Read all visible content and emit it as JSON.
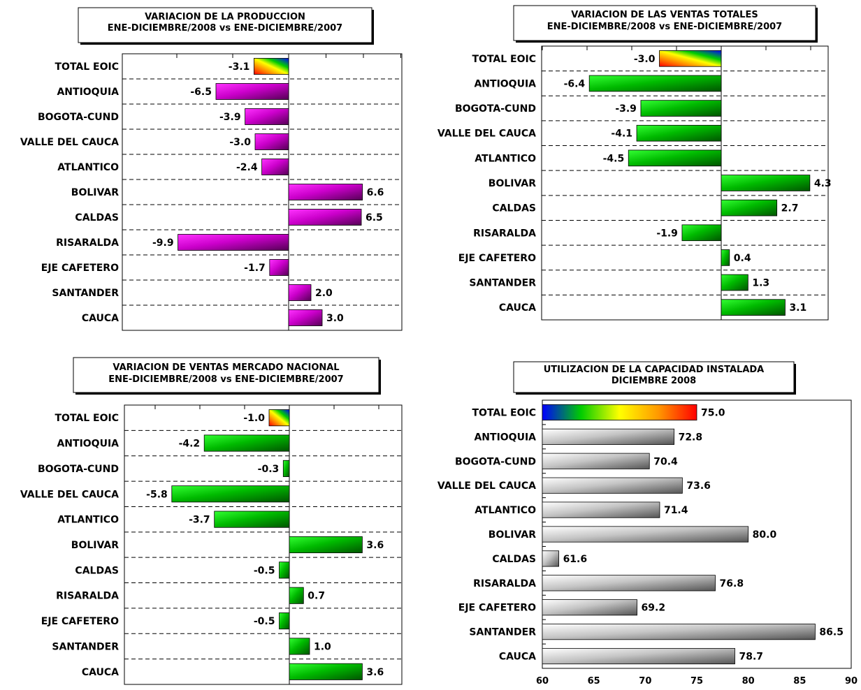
{
  "chart_data": [
    {
      "type": "bar",
      "orientation": "horizontal",
      "title": "VARIACION DE LA PRODUCCION",
      "subtitle": "ENE-DICIEMBRE/2008 vs ENE-DICIEMBRE/2007",
      "categories": [
        "TOTAL EOIC",
        "ANTIOQUIA",
        "BOGOTA-CUND",
        "VALLE DEL CAUCA",
        "ATLANTICO",
        "BOLIVAR",
        "CALDAS",
        "RISARALDA",
        "EJE CAFETERO",
        "SANTANDER",
        "CAUCA"
      ],
      "values": [
        -3.1,
        -6.5,
        -3.9,
        -3.0,
        -2.4,
        6.6,
        6.5,
        -9.9,
        -1.7,
        2.0,
        3.0
      ],
      "value_labels": [
        "-3.1",
        "-6.5",
        "-3.9",
        "-3.0",
        "-2.4",
        "6.6",
        "6.5",
        "-9.9",
        "-1.7",
        "2.0",
        "3.0"
      ],
      "xlim": [
        -15,
        10
      ],
      "grid": "horizontal-dashed",
      "bar_color": "#cc00cc",
      "total_style": "rainbow"
    },
    {
      "type": "bar",
      "orientation": "horizontal",
      "title": "VARIACION DE LAS VENTAS TOTALES",
      "subtitle": "ENE-DICIEMBRE/2008 vs ENE-DICIEMBRE/2007",
      "categories": [
        "TOTAL EOIC",
        "ANTIOQUIA",
        "BOGOTA-CUND",
        "VALLE DEL CAUCA",
        "ATLANTICO",
        "BOLIVAR",
        "CALDAS",
        "RISARALDA",
        "EJE CAFETERO",
        "SANTANDER",
        "CAUCA"
      ],
      "values": [
        -3.0,
        -6.4,
        -3.9,
        -4.1,
        -4.5,
        4.3,
        2.7,
        -1.9,
        0.4,
        1.3,
        3.1
      ],
      "value_labels": [
        "-3.0",
        "-6.4",
        "-3.9",
        "-4.1",
        "-4.5",
        "4.3",
        "2.7",
        "-1.9",
        "0.4",
        "1.3",
        "3.1"
      ],
      "xlim": [
        -8,
        6
      ],
      "grid": "horizontal-dashed",
      "bar_color": "#00cc00",
      "total_style": "rainbow"
    },
    {
      "type": "bar",
      "orientation": "horizontal",
      "title": "VARIACION DE VENTAS MERCADO NACIONAL",
      "subtitle": "ENE-DICIEMBRE/2008 vs ENE-DICIEMBRE/2007",
      "categories": [
        "TOTAL EOIC",
        "ANTIOQUIA",
        "BOGOTA-CUND",
        "VALLE DEL CAUCA",
        "ATLANTICO",
        "BOLIVAR",
        "CALDAS",
        "RISARALDA",
        "EJE CAFETERO",
        "SANTANDER",
        "CAUCA"
      ],
      "values": [
        -1.0,
        -4.2,
        -0.3,
        -5.8,
        -3.7,
        3.6,
        -0.5,
        0.7,
        -0.5,
        1.0,
        3.6
      ],
      "value_labels": [
        "-1.0",
        "-4.2",
        "-0.3",
        "-5.8",
        "-3.7",
        "3.6",
        "-0.5",
        "0.7",
        "-0.5",
        "1.0",
        "3.6"
      ],
      "xlim": [
        -8,
        6
      ],
      "grid": "horizontal-dashed",
      "bar_color": "#00cc00",
      "total_style": "rainbow"
    },
    {
      "type": "bar",
      "orientation": "horizontal",
      "title": "UTILIZACION DE LA CAPACIDAD INSTALADA",
      "subtitle": "DICIEMBRE 2008",
      "categories": [
        "TOTAL EOIC",
        "ANTIOQUIA",
        "BOGOTA-CUND",
        "VALLE DEL CAUCA",
        "ATLANTICO",
        "BOLIVAR",
        "CALDAS",
        "RISARALDA",
        "EJE CAFETERO",
        "SANTANDER",
        "CAUCA"
      ],
      "values": [
        75.0,
        72.8,
        70.4,
        73.6,
        71.4,
        80.0,
        61.6,
        76.8,
        69.2,
        86.5,
        78.7
      ],
      "value_labels": [
        "75.0",
        "72.8",
        "70.4",
        "73.6",
        "71.4",
        "80.0",
        "61.6",
        "76.8",
        "69.2",
        "86.5",
        "78.7"
      ],
      "xlim": [
        60,
        90
      ],
      "xticks": [
        "60",
        "65",
        "70",
        "75",
        "80",
        "85",
        "90"
      ],
      "grid": "none",
      "bar_color": "#c0c0c0",
      "total_style": "rainbow-reverse"
    }
  ]
}
